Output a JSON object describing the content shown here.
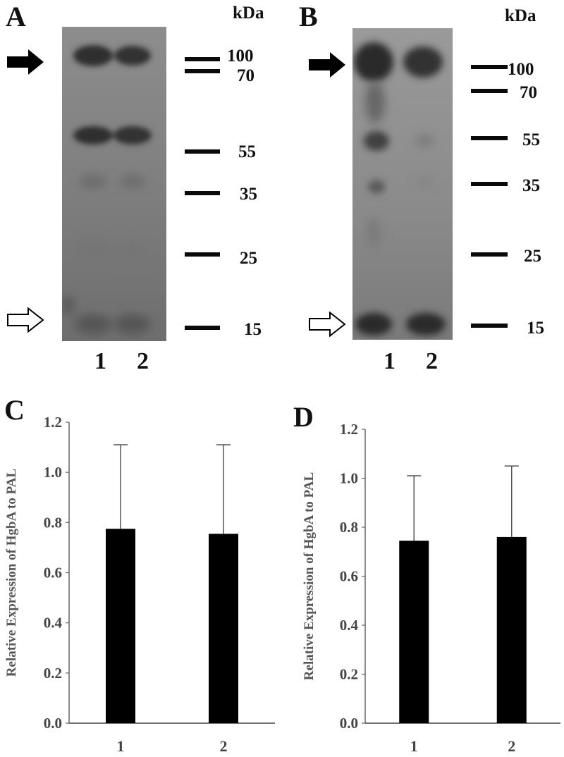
{
  "panels": {
    "A": {
      "letter": "A",
      "unit": "kDa",
      "markers": [
        "100",
        "70",
        "55",
        "35",
        "25",
        "15"
      ],
      "lanes": [
        "1",
        "2"
      ]
    },
    "B": {
      "letter": "B",
      "unit": "kDa",
      "markers": [
        "100",
        "70",
        "55",
        "35",
        "25",
        "15"
      ],
      "lanes": [
        "1",
        "2"
      ]
    },
    "C": {
      "letter": "C"
    },
    "D": {
      "letter": "D"
    }
  },
  "chart_data": [
    {
      "panel": "C",
      "type": "bar",
      "categories": [
        "1",
        "2"
      ],
      "values": [
        0.775,
        0.755
      ],
      "error_upper": [
        1.11,
        1.11
      ],
      "ylabel": "Relative Expression of HgbA to PAL",
      "xlabel": "",
      "ylim": [
        0,
        1.2
      ],
      "yticks": [
        "0.0",
        "0.2",
        "0.4",
        "0.6",
        "0.8",
        "1.0",
        "1.2"
      ],
      "bar_color": "#000000",
      "grid": false
    },
    {
      "panel": "D",
      "type": "bar",
      "categories": [
        "1",
        "2"
      ],
      "values": [
        0.745,
        0.76
      ],
      "error_upper": [
        1.01,
        1.05
      ],
      "ylabel": "Relative Expression of HgbA to PAL",
      "xlabel": "",
      "ylim": [
        0,
        1.2
      ],
      "yticks": [
        "0.0",
        "0.2",
        "0.4",
        "0.6",
        "0.8",
        "1.0",
        "1.2"
      ],
      "bar_color": "#000000",
      "grid": false
    }
  ]
}
